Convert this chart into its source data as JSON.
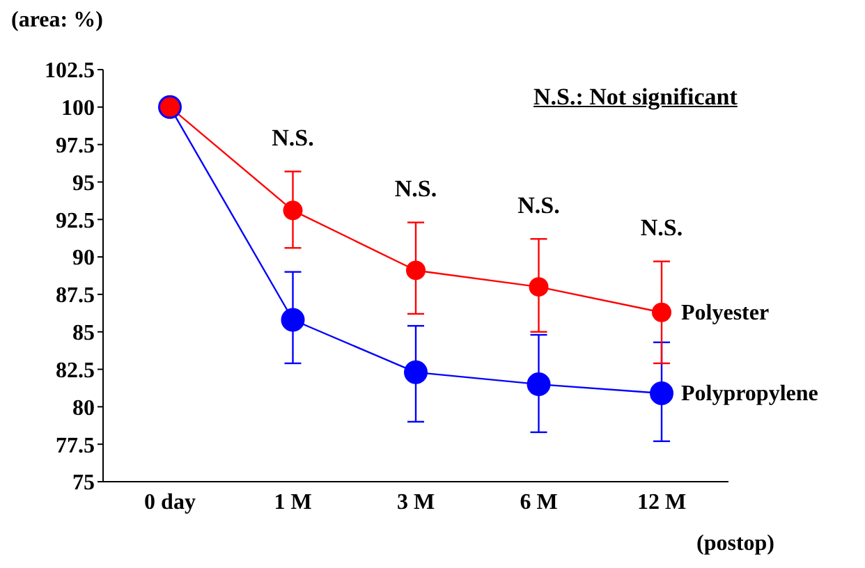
{
  "chart_data": {
    "type": "line",
    "ylabel": "(area: %)",
    "xlabel": "(postop)",
    "categories": [
      "0 day",
      "1 M",
      "3 M",
      "6 M",
      "12 M"
    ],
    "ylim": [
      75,
      102.5
    ],
    "yticks": [
      75,
      77.5,
      80,
      82.5,
      85,
      87.5,
      90,
      92.5,
      95,
      97.5,
      100,
      102.5
    ],
    "grid": false,
    "legend": false,
    "marker": "circle",
    "line_style": "solid",
    "series": [
      {
        "name": "Polyester",
        "color": "#ff0000",
        "values": [
          100,
          93.1,
          89.1,
          88.0,
          86.3
        ],
        "errors": [
          null,
          [
            90.6,
            95.7
          ],
          [
            86.2,
            92.3
          ],
          [
            85.0,
            91.2
          ],
          [
            82.9,
            89.7
          ]
        ]
      },
      {
        "name": "Polypropylene",
        "color": "#0000ff",
        "values": [
          100,
          85.8,
          82.3,
          81.5,
          80.9
        ],
        "errors": [
          null,
          [
            82.9,
            89.0
          ],
          [
            79.0,
            85.4
          ],
          [
            78.3,
            84.8
          ],
          [
            77.7,
            84.3
          ]
        ]
      }
    ],
    "annotations": [
      "N.S.: Not significant",
      "N.S.",
      "N.S.",
      "N.S.",
      "N.S."
    ]
  }
}
